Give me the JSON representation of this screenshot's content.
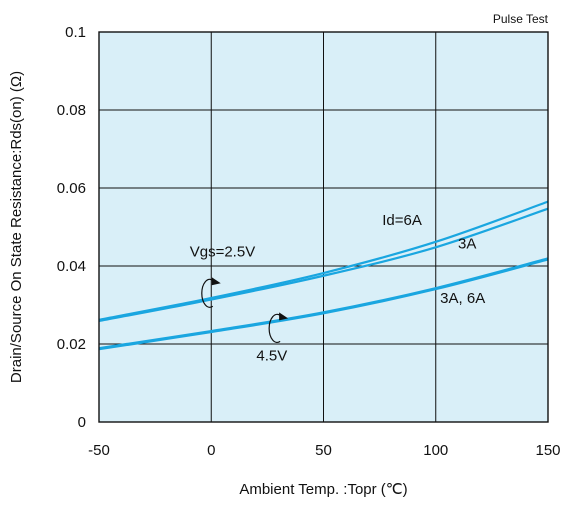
{
  "chart_data": {
    "type": "line",
    "note": "Pulse Test",
    "xlabel": "Ambient Temp. :Topr (℃)",
    "ylabel": "Drain/Source On State Resistance:Rds(on) (Ω)",
    "xlim": [
      -50,
      150
    ],
    "ylim": [
      0,
      0.1
    ],
    "x_ticks": [
      "-50",
      "0",
      "50",
      "100",
      "150"
    ],
    "y_ticks": [
      "0",
      "0.02",
      "0.04",
      "0.06",
      "0.08",
      "0.1"
    ],
    "grid": true,
    "background_color": "#d9eff8",
    "line_color": "#1aa6e0",
    "series": [
      {
        "name": "Id=6A",
        "x": [
          -50,
          0,
          50,
          100,
          150
        ],
        "y": [
          0.0262,
          0.0318,
          0.0382,
          0.0462,
          0.0565
        ]
      },
      {
        "name": "3A",
        "x": [
          -50,
          0,
          50,
          100,
          150
        ],
        "y": [
          0.0259,
          0.0314,
          0.0375,
          0.0448,
          0.0547
        ]
      },
      {
        "name": "3A, 6A",
        "x": [
          -50,
          0,
          50,
          100,
          150
        ],
        "y": [
          0.0188,
          0.0232,
          0.028,
          0.0342,
          0.0418
        ]
      }
    ],
    "annotations": [
      {
        "text": "Vgs=2.5V",
        "x": 5,
        "y": 0.0425
      },
      {
        "text": "Id=6A",
        "x": 85,
        "y": 0.0505
      },
      {
        "text": "3A",
        "x": 114,
        "y": 0.0445
      },
      {
        "text": "3A, 6A",
        "x": 112,
        "y": 0.0305
      },
      {
        "text": "4.5V",
        "x": 27,
        "y": 0.0158
      }
    ]
  }
}
